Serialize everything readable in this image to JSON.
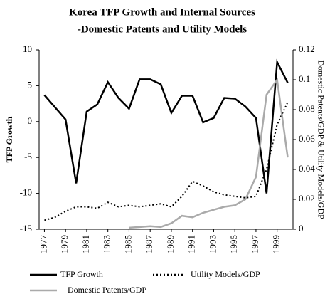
{
  "chart_data": {
    "type": "line",
    "title": "Korea TFP Growth and Internal  Sources",
    "subtitle": "-Domestic Patents and Utility  Models",
    "ylabel": "TFP Growth",
    "y2label": "Domestic Patents/GDP & Utility Models/GDP",
    "x": [
      1977,
      1978,
      1979,
      1980,
      1981,
      1982,
      1983,
      1984,
      1985,
      1986,
      1987,
      1988,
      1989,
      1990,
      1991,
      1992,
      1993,
      1994,
      1995,
      1996,
      1997,
      1998,
      1999,
      2000
    ],
    "xlim": [
      1976.5,
      2000.5
    ],
    "xticks": [
      1977,
      1979,
      1981,
      1983,
      1985,
      1987,
      1989,
      1991,
      1993,
      1995,
      1997,
      1999
    ],
    "ylim": [
      -15,
      10
    ],
    "yticks": [
      -15,
      -10,
      -5,
      0,
      5,
      10
    ],
    "y2lim": [
      0,
      0.12
    ],
    "y2ticks": [
      0,
      0.02,
      0.04,
      0.06,
      0.08,
      0.1,
      0.12
    ],
    "grid": false,
    "legend": "bottom",
    "series": [
      {
        "name": "TFP Growth",
        "color": "#000000",
        "dash": "solid",
        "axis": "y",
        "values": [
          3.7,
          2.0,
          0.3,
          -8.6,
          1.4,
          2.4,
          5.5,
          3.3,
          1.8,
          5.9,
          5.9,
          5.2,
          1.2,
          3.6,
          3.6,
          -0.1,
          0.5,
          3.3,
          3.2,
          2.1,
          0.5,
          -10.0,
          8.3,
          5.4
        ]
      },
      {
        "name": "Utility Models/GDP",
        "color": "#000000",
        "dash": "dotted",
        "axis": "y2",
        "values": [
          0.006,
          0.008,
          0.012,
          0.015,
          0.015,
          0.014,
          0.018,
          0.015,
          0.016,
          0.015,
          0.016,
          0.017,
          0.015,
          0.022,
          0.032,
          0.029,
          0.025,
          0.023,
          0.022,
          0.021,
          0.022,
          0.04,
          0.07,
          0.085
        ]
      },
      {
        "name": "Domestic Patents/GDP",
        "color": "#aaaaaa",
        "dash": "solid",
        "axis": "y2",
        "values": [
          null,
          null,
          null,
          null,
          null,
          null,
          null,
          null,
          0.001,
          0.0015,
          0.002,
          0.0015,
          0.004,
          0.009,
          0.008,
          0.011,
          0.013,
          0.015,
          0.016,
          0.02,
          0.035,
          0.09,
          0.1,
          0.048
        ]
      }
    ]
  }
}
